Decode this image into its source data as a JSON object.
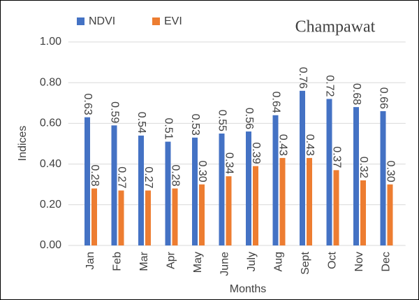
{
  "chart_data": {
    "type": "bar",
    "title": "Champawat",
    "x_label": "Months",
    "y_label": "Indices",
    "categories": [
      "Jan",
      "Feb",
      "Mar",
      "Apr",
      "May",
      "June",
      "July",
      "Aug",
      "Sept",
      "Oct",
      "Nov",
      "Dec"
    ],
    "series": [
      {
        "name": "NDVI",
        "color": "#4472c4",
        "values": [
          0.63,
          0.59,
          0.54,
          0.51,
          0.53,
          0.55,
          0.56,
          0.64,
          0.76,
          0.72,
          0.68,
          0.66
        ],
        "value_labels": [
          "0.63",
          "0.59",
          "0.54",
          "0.51",
          "0.53",
          "0.55",
          "0.56",
          "0.64",
          "0.76",
          "0.72",
          "0.68",
          "0.66"
        ]
      },
      {
        "name": "EVI",
        "color": "#ed7d31",
        "values": [
          0.28,
          0.27,
          0.27,
          0.28,
          0.3,
          0.34,
          0.39,
          0.43,
          0.43,
          0.37,
          0.32,
          0.3
        ],
        "value_labels": [
          "0.28",
          "0.27",
          "0.27",
          "0.28",
          "0.30",
          "0.34",
          "0.39",
          "0.43",
          "0.43",
          "0.37",
          "0.32",
          "0.30"
        ]
      }
    ],
    "ylim": [
      0,
      1
    ],
    "yticks": [
      {
        "value": 0,
        "label": "0.00"
      },
      {
        "value": 0.2,
        "label": "0.20"
      },
      {
        "value": 0.4,
        "label": "0.40"
      },
      {
        "value": 0.6,
        "label": "0.60"
      },
      {
        "value": 0.8,
        "label": "0.80"
      },
      {
        "value": 1,
        "label": "1.00"
      }
    ],
    "grid": true,
    "legend": "top-left"
  }
}
